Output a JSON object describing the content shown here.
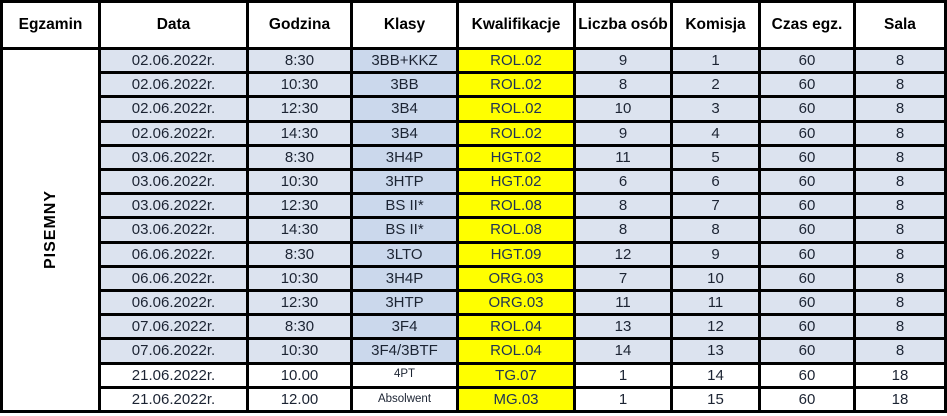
{
  "table": {
    "egzamin_label": "PISEMNY",
    "columns": [
      "Egzamin",
      "Data",
      "Godzina",
      "Klasy",
      "Kwalifikacje",
      "Liczba osób",
      "Komisja",
      "Czas egz.",
      "Sala"
    ],
    "rows": [
      {
        "data": "02.06.2022r.",
        "godzina": "8:30",
        "klasy": "3BB+KKZ",
        "kwalifikacje": "ROL.02",
        "liczba_osob": "9",
        "komisja": "1",
        "czas_egz": "60",
        "sala": "8",
        "shaded": true,
        "small_klasy": false
      },
      {
        "data": "02.06.2022r.",
        "godzina": "10:30",
        "klasy": "3BB",
        "kwalifikacje": "ROL.02",
        "liczba_osob": "8",
        "komisja": "2",
        "czas_egz": "60",
        "sala": "8",
        "shaded": true,
        "small_klasy": false
      },
      {
        "data": "02.06.2022r.",
        "godzina": "12:30",
        "klasy": "3B4",
        "kwalifikacje": "ROL.02",
        "liczba_osob": "10",
        "komisja": "3",
        "czas_egz": "60",
        "sala": "8",
        "shaded": true,
        "small_klasy": false
      },
      {
        "data": "02.06.2022r.",
        "godzina": "14:30",
        "klasy": "3B4",
        "kwalifikacje": "ROL.02",
        "liczba_osob": "9",
        "komisja": "4",
        "czas_egz": "60",
        "sala": "8",
        "shaded": true,
        "small_klasy": false
      },
      {
        "data": "03.06.2022r.",
        "godzina": "8:30",
        "klasy": "3H4P",
        "kwalifikacje": "HGT.02",
        "liczba_osob": "11",
        "komisja": "5",
        "czas_egz": "60",
        "sala": "8",
        "shaded": true,
        "small_klasy": false
      },
      {
        "data": "03.06.2022r.",
        "godzina": "10:30",
        "klasy": "3HTP",
        "kwalifikacje": "HGT.02",
        "liczba_osob": "6",
        "komisja": "6",
        "czas_egz": "60",
        "sala": "8",
        "shaded": true,
        "small_klasy": false
      },
      {
        "data": "03.06.2022r.",
        "godzina": "12:30",
        "klasy": "BS II*",
        "kwalifikacje": "ROL.08",
        "liczba_osob": "8",
        "komisja": "7",
        "czas_egz": "60",
        "sala": "8",
        "shaded": true,
        "small_klasy": false
      },
      {
        "data": "03.06.2022r.",
        "godzina": "14:30",
        "klasy": "BS II*",
        "kwalifikacje": "ROL.08",
        "liczba_osob": "8",
        "komisja": "8",
        "czas_egz": "60",
        "sala": "8",
        "shaded": true,
        "small_klasy": false
      },
      {
        "data": "06.06.2022r.",
        "godzina": "8:30",
        "klasy": "3LTO",
        "kwalifikacje": "HGT.09",
        "liczba_osob": "12",
        "komisja": "9",
        "czas_egz": "60",
        "sala": "8",
        "shaded": true,
        "small_klasy": false
      },
      {
        "data": "06.06.2022r.",
        "godzina": "10:30",
        "klasy": "3H4P",
        "kwalifikacje": "ORG.03",
        "liczba_osob": "7",
        "komisja": "10",
        "czas_egz": "60",
        "sala": "8",
        "shaded": true,
        "small_klasy": false
      },
      {
        "data": "06.06.2022r.",
        "godzina": "12:30",
        "klasy": "3HTP",
        "kwalifikacje": "ORG.03",
        "liczba_osob": "11",
        "komisja": "11",
        "czas_egz": "60",
        "sala": "8",
        "shaded": true,
        "small_klasy": false
      },
      {
        "data": "07.06.2022r.",
        "godzina": "8:30",
        "klasy": "3F4",
        "kwalifikacje": "ROL.04",
        "liczba_osob": "13",
        "komisja": "12",
        "czas_egz": "60",
        "sala": "8",
        "shaded": true,
        "small_klasy": false
      },
      {
        "data": "07.06.2022r.",
        "godzina": "10:30",
        "klasy": "3F4/3BTF",
        "kwalifikacje": "ROL.04",
        "liczba_osob": "14",
        "komisja": "13",
        "czas_egz": "60",
        "sala": "8",
        "shaded": true,
        "small_klasy": false
      },
      {
        "data": "21.06.2022r.",
        "godzina": "10.00",
        "klasy": "4PT",
        "kwalifikacje": "TG.07",
        "liczba_osob": "1",
        "komisja": "14",
        "czas_egz": "60",
        "sala": "18",
        "shaded": false,
        "small_klasy": true
      },
      {
        "data": "21.06.2022r.",
        "godzina": "12.00",
        "klasy": "Absolwent",
        "kwalifikacje": "MG.03",
        "liczba_osob": "1",
        "komisja": "15",
        "czas_egz": "60",
        "sala": "18",
        "shaded": false,
        "small_klasy": true
      }
    ],
    "colors": {
      "highlight_yellow": "#ffff00",
      "row_blue": "#dce3ef",
      "klasy_blue": "#cbd8ec",
      "border": "#000000",
      "header_bg": "#ffffff"
    }
  }
}
